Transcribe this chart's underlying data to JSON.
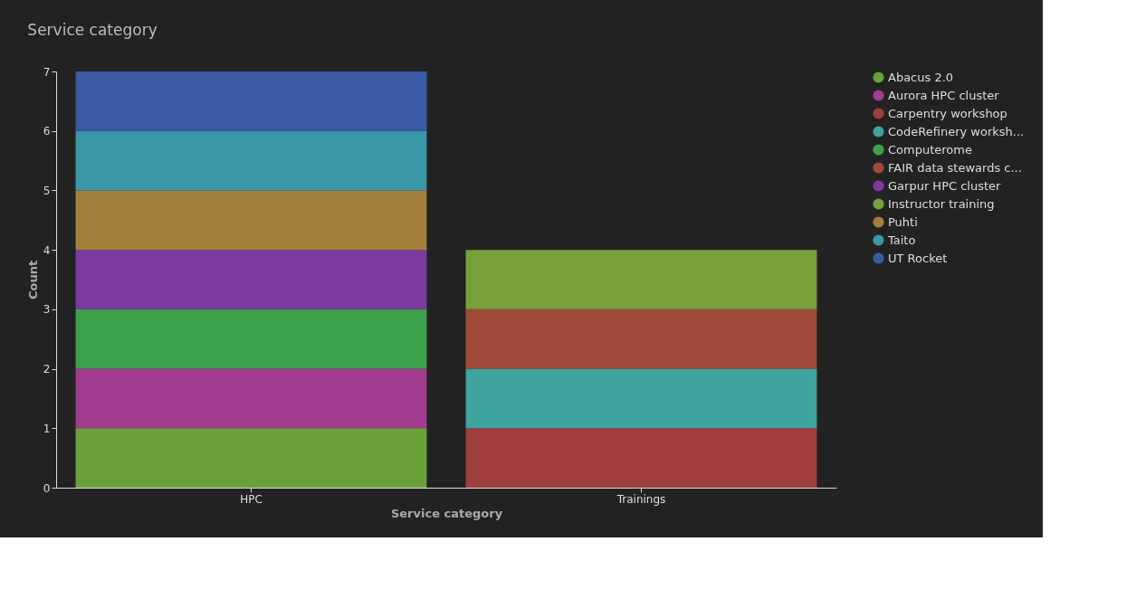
{
  "chart_data": {
    "type": "bar",
    "title": "Service category",
    "xlabel": "Service category",
    "ylabel": "Count",
    "categories": [
      "HPC",
      "Trainings"
    ],
    "stacked": true,
    "ylim": [
      0,
      7
    ],
    "yticks": [
      0,
      1,
      2,
      3,
      4,
      5,
      6,
      7
    ],
    "grid": false,
    "legend": "top right",
    "series": [
      {
        "name": "Abacus 2.0",
        "color": "#6aa13a",
        "values": [
          1,
          null
        ]
      },
      {
        "name": "Aurora HPC cluster",
        "color": "#a13c8f",
        "values": [
          1,
          null
        ]
      },
      {
        "name": "Carpentry workshop",
        "color": "#a03d3d",
        "values": [
          null,
          1
        ]
      },
      {
        "name": "CodeRefinery worksh...",
        "color": "#3fa39e",
        "values": [
          null,
          1
        ]
      },
      {
        "name": "Computerome",
        "color": "#3ca14c",
        "values": [
          1,
          null
        ]
      },
      {
        "name": "FAIR data stewards c...",
        "color": "#a04a3a",
        "values": [
          null,
          1
        ]
      },
      {
        "name": "Garpur HPC cluster",
        "color": "#7b3aa0",
        "values": [
          1,
          null
        ]
      },
      {
        "name": "Instructor training",
        "color": "#78a03a",
        "values": [
          null,
          1
        ]
      },
      {
        "name": "Puhti",
        "color": "#a3803c",
        "values": [
          1,
          null
        ]
      },
      {
        "name": "Taito",
        "color": "#3b96a5",
        "values": [
          1,
          null
        ]
      },
      {
        "name": "UT Rocket",
        "color": "#3a5ca5",
        "values": [
          1,
          null
        ]
      }
    ]
  }
}
